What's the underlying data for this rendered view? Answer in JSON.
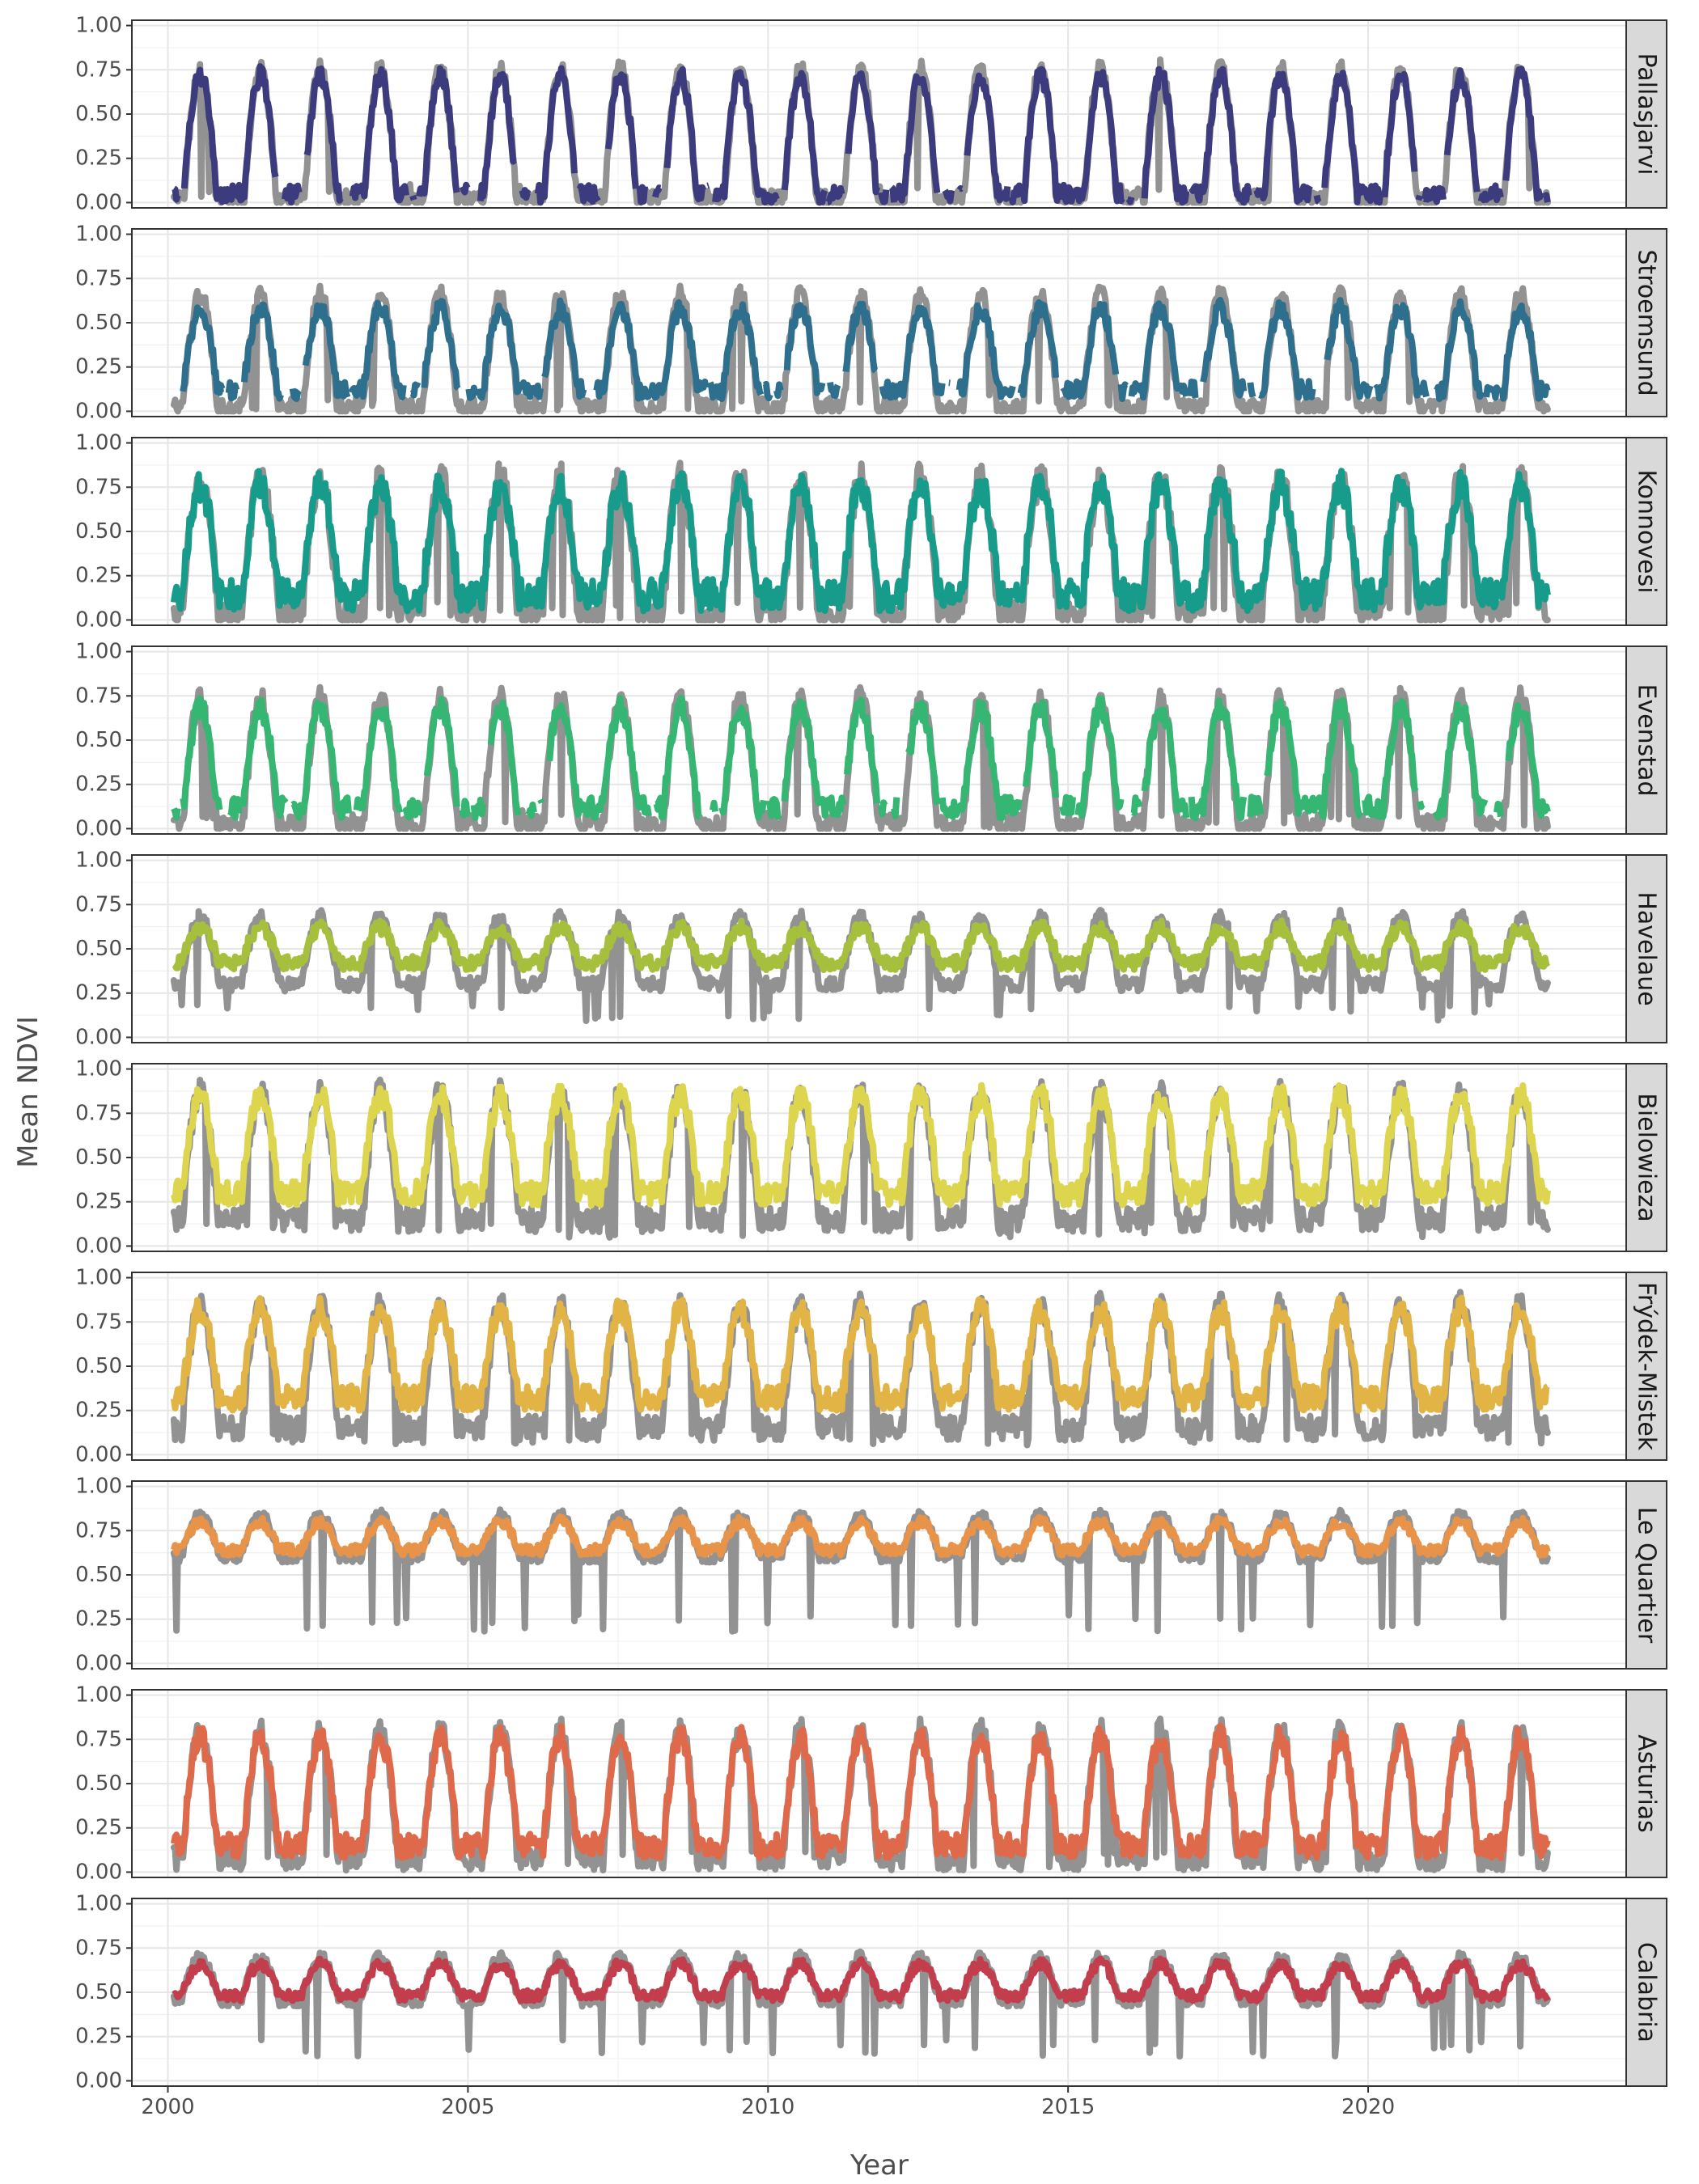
{
  "chart_data": {
    "type": "line",
    "xlabel": "Year",
    "ylabel": "Mean NDVI",
    "xlim": [
      1999.4,
      2024.3
    ],
    "ylim": [
      -0.03,
      1.03
    ],
    "x_ticks": [
      2000,
      2005,
      2010,
      2015,
      2020
    ],
    "x_tick_labels": [
      "2000",
      "2005",
      "2010",
      "2015",
      "2020"
    ],
    "y_ticks": [
      0,
      0.25,
      0.5,
      0.75,
      1
    ],
    "y_tick_labels": [
      "0.00",
      "0.25",
      "0.50",
      "0.75",
      "1.00"
    ],
    "x_range": [
      2000.1,
      2023.0
    ],
    "background_series_color": "#8c8c8c",
    "grid": true,
    "facet_strip_color": "#d9d9d9",
    "legend": "none",
    "notes": "Each facet shows two overlaid noisy seasonal time series (a grey series and a coloured series). Values below are approximate per-facet summaries of the yearly cycle read from the plot.",
    "facets": [
      {
        "label": "Pallasjarvi",
        "color": "#3b3b7d",
        "peak": 0.72,
        "trough": 0.05,
        "gray_peak": 0.76,
        "gray_trough": 0.02,
        "noise": 0.05,
        "width": 0.55,
        "gaps": true
      },
      {
        "label": "Stroemsund",
        "color": "#2e6f8e",
        "peak": 0.58,
        "trough": 0.12,
        "gray_peak": 0.66,
        "gray_trough": 0.02,
        "noise": 0.05,
        "width": 0.6,
        "gaps": true
      },
      {
        "label": "Konnovesi",
        "color": "#179b8b",
        "peak": 0.76,
        "trough": 0.14,
        "gray_peak": 0.8,
        "gray_trough": 0.03,
        "noise": 0.09,
        "width": 0.65,
        "gaps": false
      },
      {
        "label": "Evenstad",
        "color": "#35b672",
        "peak": 0.68,
        "trough": 0.12,
        "gray_peak": 0.74,
        "gray_trough": 0.02,
        "noise": 0.06,
        "width": 0.6,
        "gaps": true
      },
      {
        "label": "Havelaue",
        "color": "#a6bf3c",
        "peak": 0.62,
        "trough": 0.42,
        "gray_peak": 0.68,
        "gray_trough": 0.3,
        "noise": 0.04,
        "width": 0.7,
        "gaps": false
      },
      {
        "label": "Bielowieza",
        "color": "#ddd54e",
        "peak": 0.85,
        "trough": 0.3,
        "gray_peak": 0.87,
        "gray_trough": 0.15,
        "noise": 0.07,
        "width": 0.65,
        "gaps": false
      },
      {
        "label": "Frýdek-Mistek",
        "color": "#e2b345",
        "peak": 0.82,
        "trough": 0.32,
        "gray_peak": 0.85,
        "gray_trough": 0.15,
        "noise": 0.07,
        "width": 0.65,
        "gaps": false
      },
      {
        "label": "Le Quartier",
        "color": "#e8934a",
        "peak": 0.8,
        "trough": 0.64,
        "gray_peak": 0.84,
        "gray_trough": 0.6,
        "noise": 0.03,
        "width": 0.7,
        "gaps": false
      },
      {
        "label": "Asturias",
        "color": "#de6a4b",
        "peak": 0.76,
        "trough": 0.15,
        "gray_peak": 0.8,
        "gray_trough": 0.08,
        "noise": 0.07,
        "width": 0.6,
        "gaps": false
      },
      {
        "label": "Calabria",
        "color": "#c23e4d",
        "peak": 0.66,
        "trough": 0.48,
        "gray_peak": 0.7,
        "gray_trough": 0.45,
        "noise": 0.03,
        "width": 0.7,
        "gaps": false
      }
    ]
  }
}
